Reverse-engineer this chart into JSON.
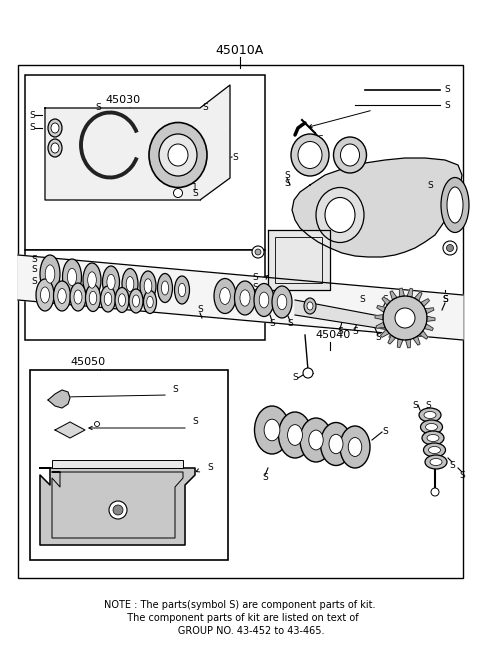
{
  "title": "45010A",
  "background_color": "#ffffff",
  "border_color": "#000000",
  "note_line1": "NOTE : The parts(symbol S) are component parts of kit.",
  "note_line2": "  The component parts of kit are listed on text of",
  "note_line3": "       GROUP NO. 43-452 to 43-465.",
  "label_main": "45010A",
  "label_30": "45030",
  "label_40": "45040",
  "label_50": "45050",
  "fig_width": 4.8,
  "fig_height": 6.57,
  "dpi": 100
}
